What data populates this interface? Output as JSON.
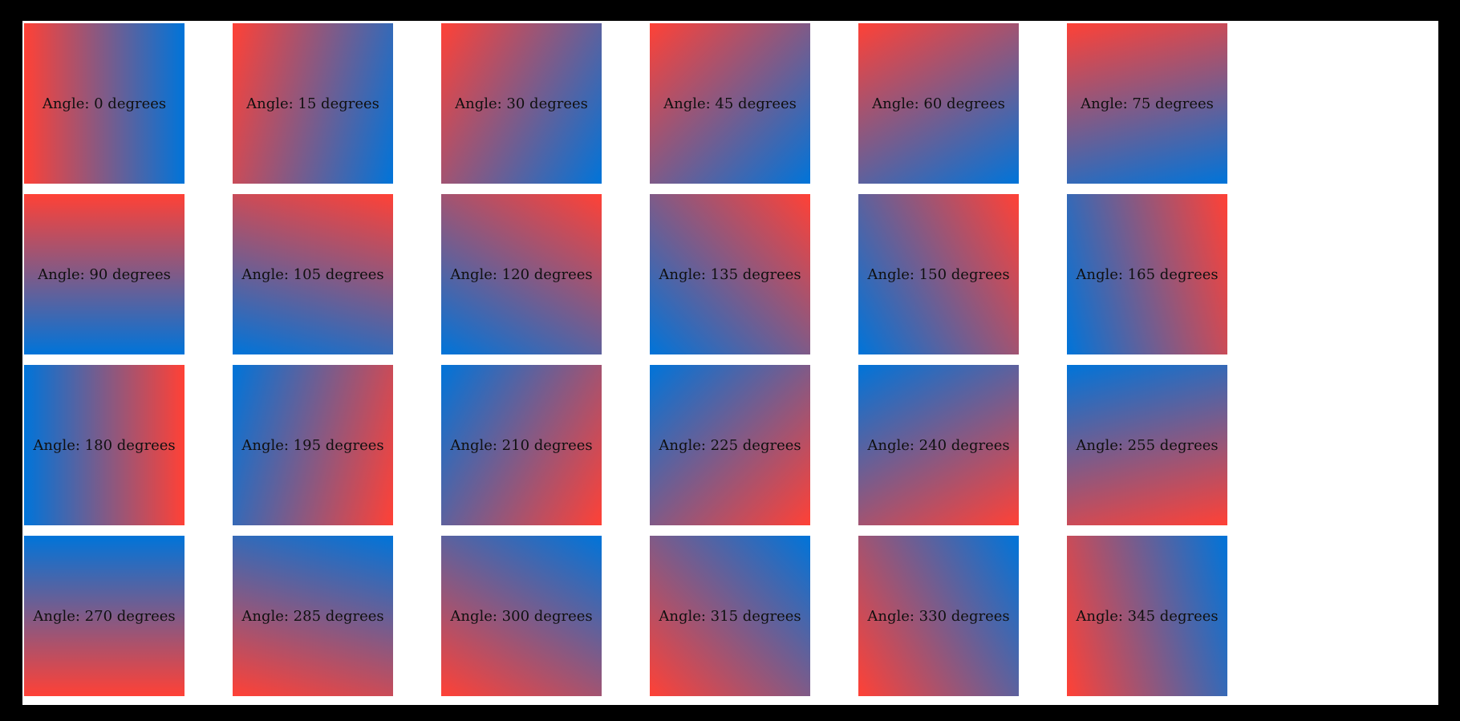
{
  "page": {
    "background_color": "#ffffff",
    "frame_color": "#000000",
    "label_text_color": "#101010"
  },
  "gradient": {
    "start_color": "#ff4136",
    "end_color": "#0074d9",
    "css_angle_offset_deg": 90
  },
  "tiles": [
    {
      "angle_degrees": 0,
      "label": "Angle: 0 degrees"
    },
    {
      "angle_degrees": 15,
      "label": "Angle: 15 degrees"
    },
    {
      "angle_degrees": 30,
      "label": "Angle: 30 degrees"
    },
    {
      "angle_degrees": 45,
      "label": "Angle: 45 degrees"
    },
    {
      "angle_degrees": 60,
      "label": "Angle: 60 degrees"
    },
    {
      "angle_degrees": 75,
      "label": "Angle: 75 degrees"
    },
    {
      "angle_degrees": 90,
      "label": "Angle: 90 degrees"
    },
    {
      "angle_degrees": 105,
      "label": "Angle: 105 degrees"
    },
    {
      "angle_degrees": 120,
      "label": "Angle: 120 degrees"
    },
    {
      "angle_degrees": 135,
      "label": "Angle: 135 degrees"
    },
    {
      "angle_degrees": 150,
      "label": "Angle: 150 degrees"
    },
    {
      "angle_degrees": 165,
      "label": "Angle: 165 degrees"
    },
    {
      "angle_degrees": 180,
      "label": "Angle: 180 degrees"
    },
    {
      "angle_degrees": 195,
      "label": "Angle: 195 degrees"
    },
    {
      "angle_degrees": 210,
      "label": "Angle: 210 degrees"
    },
    {
      "angle_degrees": 225,
      "label": "Angle: 225 degrees"
    },
    {
      "angle_degrees": 240,
      "label": "Angle: 240 degrees"
    },
    {
      "angle_degrees": 255,
      "label": "Angle: 255 degrees"
    },
    {
      "angle_degrees": 270,
      "label": "Angle: 270 degrees"
    },
    {
      "angle_degrees": 285,
      "label": "Angle: 285 degrees"
    },
    {
      "angle_degrees": 300,
      "label": "Angle: 300 degrees"
    },
    {
      "angle_degrees": 315,
      "label": "Angle: 315 degrees"
    },
    {
      "angle_degrees": 330,
      "label": "Angle: 330 degrees"
    },
    {
      "angle_degrees": 345,
      "label": "Angle: 345 degrees"
    }
  ]
}
